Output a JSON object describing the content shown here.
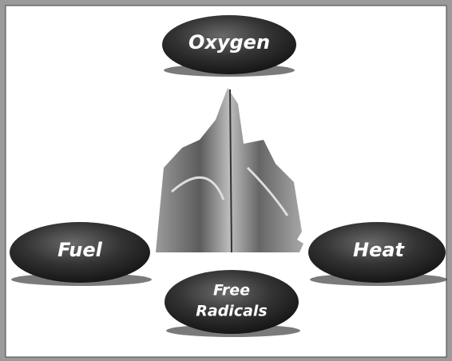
{
  "nodes": [
    {
      "lines": [
        "Oxygen"
      ]
    },
    {
      "lines": [
        "Fuel"
      ]
    },
    {
      "lines": [
        "Heat"
      ]
    },
    {
      "lines": [
        "Free",
        "Radicals"
      ]
    }
  ]
}
